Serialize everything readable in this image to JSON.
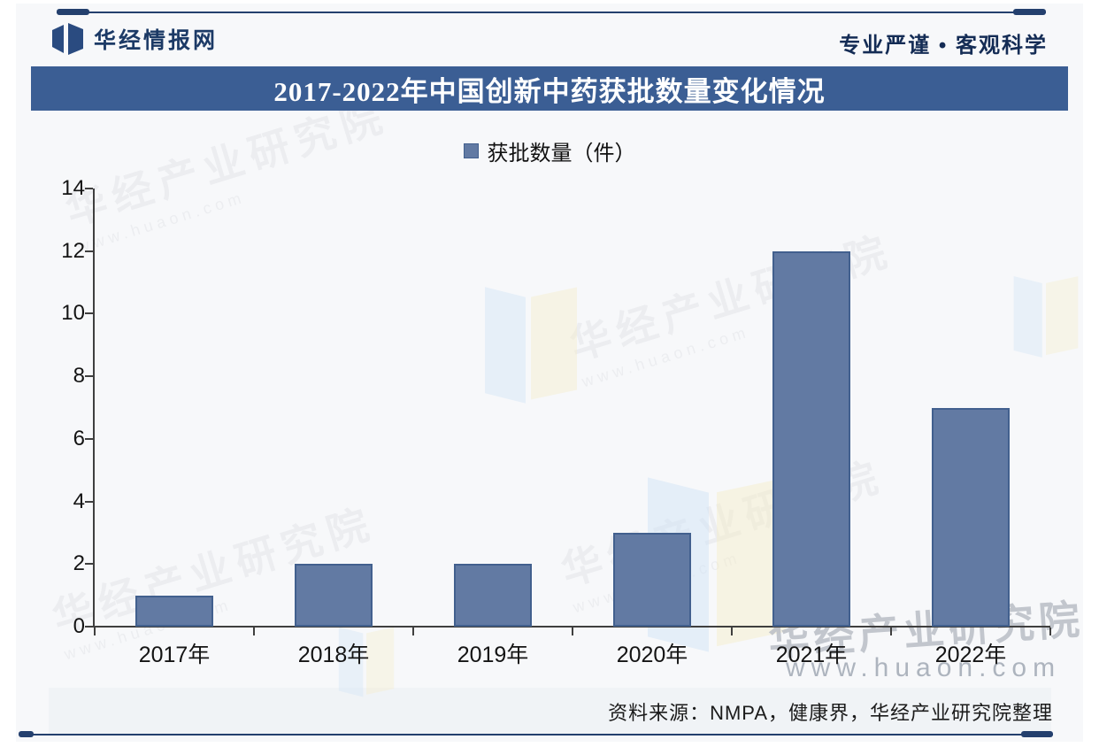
{
  "header": {
    "brand": "华经情报网",
    "slogan": "专业严谨 • 客观科学"
  },
  "title": "2017-2022年中国创新中药获批数量变化情况",
  "legend": "获批数量（件）",
  "source": "资料来源：NMPA，健康界，华经产业研究院整理",
  "watermark": {
    "name": "华经产业研究院",
    "url": "www.huaon.com"
  },
  "colors": {
    "title_bg": "#3b5e94",
    "bar_fill": "#627aa3",
    "bar_border": "#42608e",
    "accent_rule": "#24406e",
    "axis": "#3f3f3f"
  },
  "chart_data": {
    "type": "bar",
    "categories": [
      "2017年",
      "2018年",
      "2019年",
      "2020年",
      "2021年",
      "2022年"
    ],
    "values": [
      1,
      2,
      2,
      3,
      12,
      7
    ],
    "series": [
      {
        "name": "获批数量（件）",
        "values": [
          1,
          2,
          2,
          3,
          12,
          7
        ]
      }
    ],
    "title": "2017-2022年中国创新中药获批数量变化情况",
    "xlabel": "",
    "ylabel": "",
    "ylim": [
      0,
      14
    ],
    "ytick_step": 2,
    "grid": false,
    "legend_position": "top"
  }
}
